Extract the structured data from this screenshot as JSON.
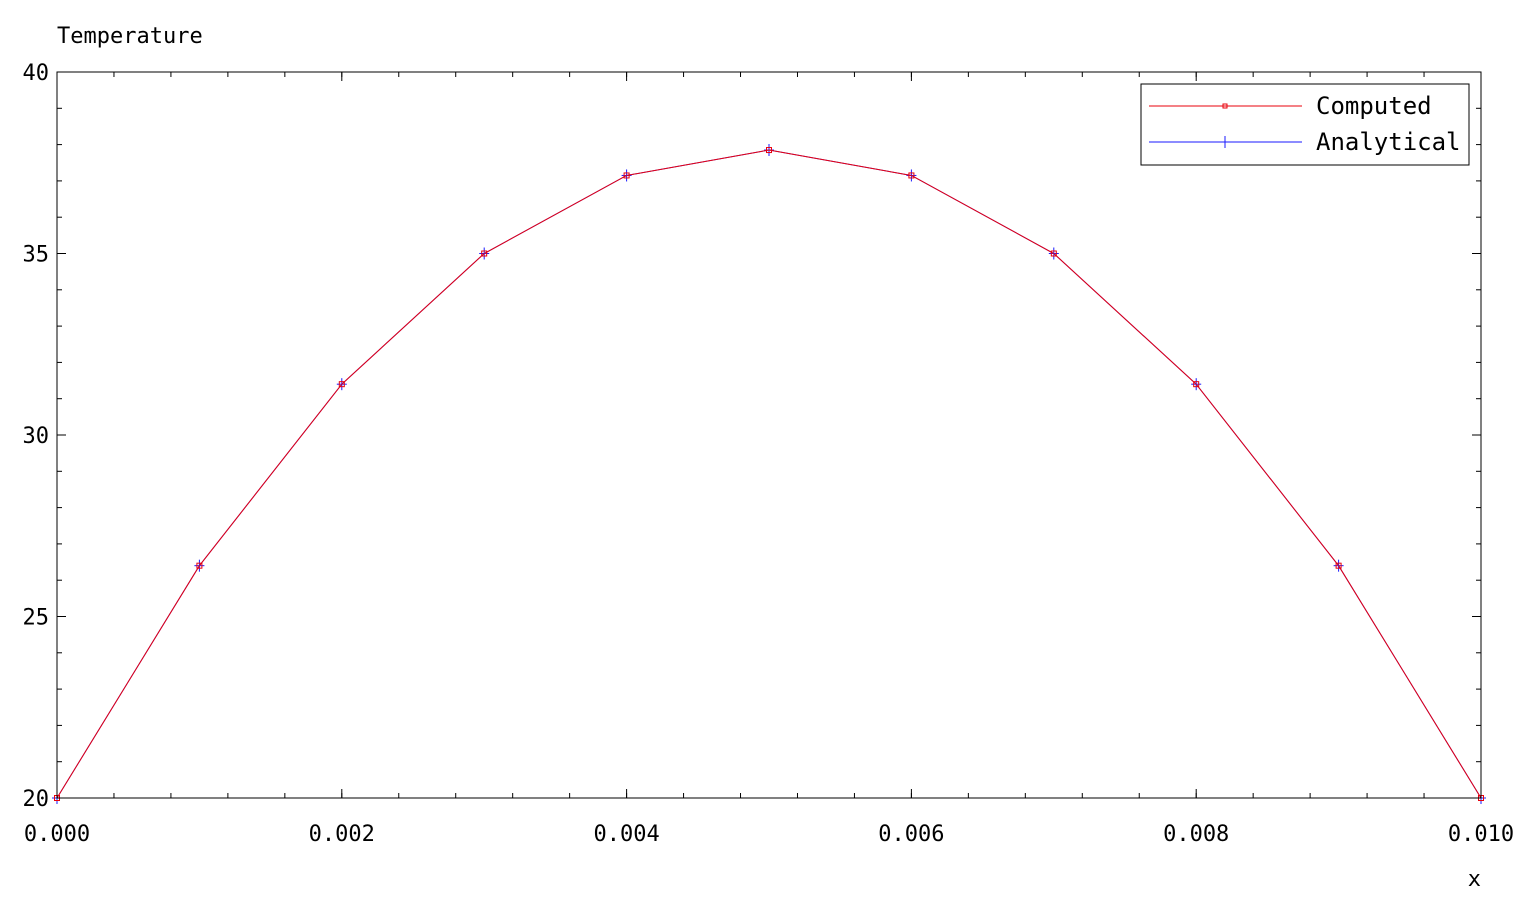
{
  "chart_data": {
    "type": "line",
    "title": "",
    "xlabel": "x",
    "ylabel": "Temperature",
    "xlim": [
      0.0,
      0.01
    ],
    "ylim": [
      20,
      40
    ],
    "x_ticks": [
      0.0,
      0.002,
      0.004,
      0.006,
      0.008,
      0.01
    ],
    "x_tick_labels": [
      "0.000",
      "0.002",
      "0.004",
      "0.006",
      "0.008",
      "0.010"
    ],
    "y_ticks": [
      20,
      25,
      30,
      35,
      40
    ],
    "y_tick_labels": [
      "20",
      "25",
      "30",
      "35",
      "40"
    ],
    "grid": false,
    "legend_position": "top-right",
    "x": [
      0.0,
      0.001,
      0.002,
      0.003,
      0.004,
      0.005,
      0.006,
      0.007,
      0.008,
      0.009,
      0.01
    ],
    "series": [
      {
        "name": "Computed",
        "color": "#e8000b",
        "marker": "square",
        "values": [
          20.0,
          26.4,
          31.4,
          35.0,
          37.15,
          37.85,
          37.15,
          35.0,
          31.4,
          26.4,
          20.0
        ]
      },
      {
        "name": "Analytical",
        "color": "#1a1aff",
        "marker": "plus",
        "values": [
          20.0,
          26.4,
          31.4,
          35.0,
          37.15,
          37.85,
          37.15,
          35.0,
          31.4,
          26.4,
          20.0
        ]
      }
    ]
  }
}
